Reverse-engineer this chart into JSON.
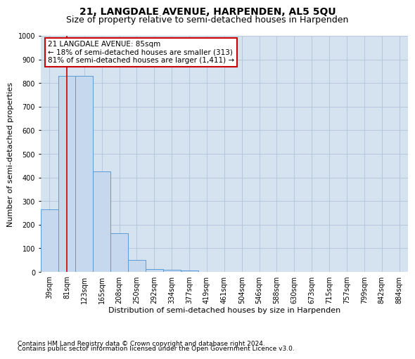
{
  "title": "21, LANGDALE AVENUE, HARPENDEN, AL5 5QU",
  "subtitle": "Size of property relative to semi-detached houses in Harpenden",
  "xlabel": "Distribution of semi-detached houses by size in Harpenden",
  "ylabel": "Number of semi-detached properties",
  "footnote1": "Contains HM Land Registry data © Crown copyright and database right 2024.",
  "footnote2": "Contains public sector information licensed under the Open Government Licence v3.0.",
  "categories": [
    "39sqm",
    "81sqm",
    "123sqm",
    "165sqm",
    "208sqm",
    "250sqm",
    "292sqm",
    "334sqm",
    "377sqm",
    "419sqm",
    "461sqm",
    "504sqm",
    "546sqm",
    "588sqm",
    "630sqm",
    "673sqm",
    "715sqm",
    "757sqm",
    "799sqm",
    "842sqm",
    "884sqm"
  ],
  "values": [
    265,
    830,
    830,
    425,
    165,
    52,
    12,
    10,
    5,
    0,
    0,
    0,
    0,
    0,
    0,
    0,
    0,
    0,
    0,
    0,
    0
  ],
  "bar_color": "#c5d8ee",
  "bar_edge_color": "#5b9bd5",
  "grid_color": "#b8c8dc",
  "background_color": "#d5e2f0",
  "annotation_line1": "21 LANGDALE AVENUE: 85sqm",
  "annotation_line2": "← 18% of semi-detached houses are smaller (313)",
  "annotation_line3": "81% of semi-detached houses are larger (1,411) →",
  "annotation_box_color": "#ffffff",
  "annotation_box_edge": "#cc0000",
  "vline_color": "#cc0000",
  "vline_x": 1,
  "ylim": [
    0,
    1000
  ],
  "yticks": [
    0,
    100,
    200,
    300,
    400,
    500,
    600,
    700,
    800,
    900,
    1000
  ],
  "title_fontsize": 10,
  "subtitle_fontsize": 9,
  "xlabel_fontsize": 8,
  "ylabel_fontsize": 8,
  "tick_fontsize": 7,
  "annotation_fontsize": 7.5,
  "footnote_fontsize": 6.5
}
